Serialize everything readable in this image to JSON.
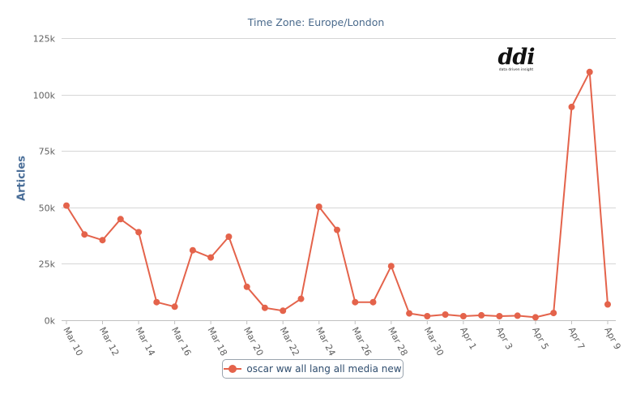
{
  "chart_data": {
    "type": "line",
    "subtitle": "Time Zone: Europe/London",
    "ylabel": "Articles",
    "xlabel": "",
    "ylim": [
      0,
      125000
    ],
    "yticks": [
      0,
      25000,
      50000,
      75000,
      100000,
      125000
    ],
    "ytick_labels": [
      "0k",
      "25k",
      "50k",
      "75k",
      "100k",
      "125k"
    ],
    "xtick_labels": [
      "Mar 10",
      "Mar 12",
      "Mar 14",
      "Mar 16",
      "Mar 18",
      "Mar 20",
      "Mar 22",
      "Mar 24",
      "Mar 26",
      "Mar 28",
      "Mar 30",
      "Apr 1",
      "Apr 3",
      "Apr 5",
      "Apr 7",
      "Apr 9"
    ],
    "x": [
      "Mar 10",
      "Mar 11",
      "Mar 12",
      "Mar 13",
      "Mar 14",
      "Mar 15",
      "Mar 16",
      "Mar 17",
      "Mar 18",
      "Mar 19",
      "Mar 20",
      "Mar 21",
      "Mar 22",
      "Mar 23",
      "Mar 24",
      "Mar 25",
      "Mar 26",
      "Mar 27",
      "Mar 28",
      "Mar 29",
      "Mar 30",
      "Mar 31",
      "Apr 1",
      "Apr 2",
      "Apr 3",
      "Apr 4",
      "Apr 5",
      "Apr 6",
      "Apr 7",
      "Apr 8",
      "Apr 9"
    ],
    "grid": true,
    "legend_position": "bottom-center",
    "series": [
      {
        "name": "oscar ww all lang all media new",
        "color": "#e4634b",
        "values": [
          50800,
          38000,
          35500,
          44800,
          39000,
          8000,
          6000,
          31000,
          27800,
          37000,
          14800,
          5500,
          4200,
          9500,
          50300,
          40000,
          8000,
          8000,
          24000,
          3000,
          1800,
          2500,
          1800,
          2200,
          1800,
          2000,
          1300,
          3200,
          94500,
          110000,
          7000
        ]
      }
    ]
  },
  "logo": {
    "word": "ddi",
    "tagline": "data driven insight"
  }
}
